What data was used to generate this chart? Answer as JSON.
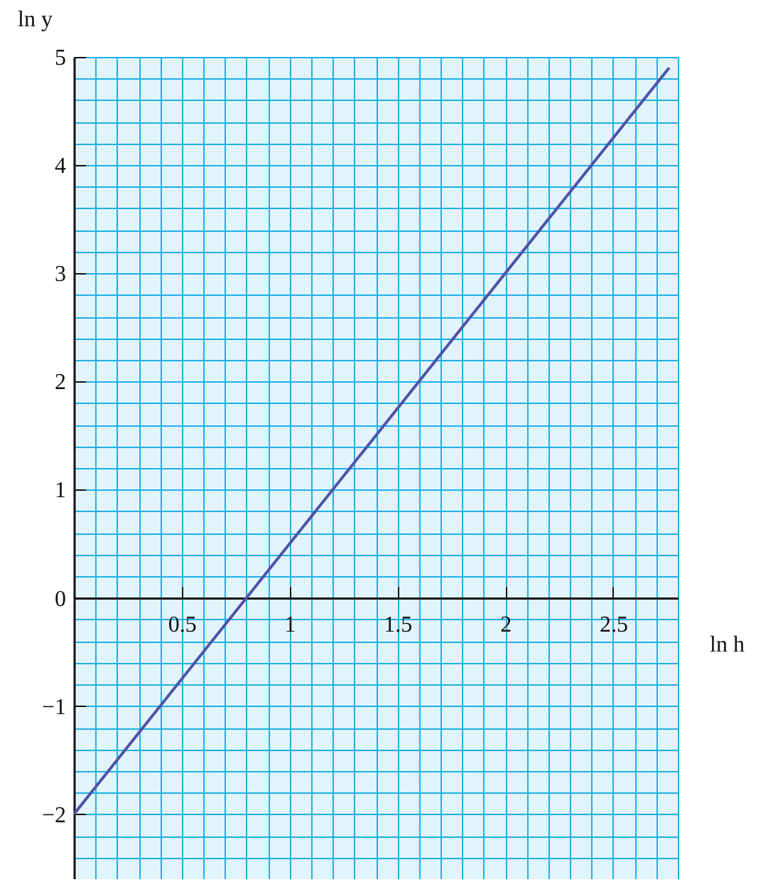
{
  "chart_data": {
    "type": "line",
    "xlabel": "ln h",
    "ylabel": "ln y",
    "xlim": [
      0,
      2.8
    ],
    "ylim": [
      -2.6,
      5
    ],
    "grid": true,
    "xticks": [
      {
        "value": 0,
        "label": null
      },
      {
        "value": 0.1,
        "label": null
      },
      {
        "value": 0.2,
        "label": null
      },
      {
        "value": 0.3,
        "label": null
      },
      {
        "value": 0.4,
        "label": null
      },
      0.5,
      {
        "value": 0.6,
        "label": null
      },
      {
        "value": 0.7,
        "label": null
      },
      {
        "value": 0.8,
        "label": null
      },
      {
        "value": 0.9,
        "label": null
      },
      1,
      {
        "value": 1.1,
        "label": null
      },
      {
        "value": 1.2,
        "label": null
      },
      {
        "value": 1.3,
        "label": null
      },
      {
        "value": 1.4,
        "label": null
      },
      1.5,
      {
        "value": 1.6,
        "label": null
      },
      {
        "value": 1.7,
        "label": null
      },
      {
        "value": 1.8,
        "label": null
      },
      {
        "value": 1.9,
        "label": null
      },
      2,
      {
        "value": 2.1,
        "label": null
      },
      {
        "value": 2.2,
        "label": null
      },
      {
        "value": 2.3,
        "label": null
      },
      {
        "value": 2.4,
        "label": null
      },
      2.5,
      {
        "value": 2.6,
        "label": null
      },
      {
        "value": 2.7,
        "label": null
      },
      {
        "value": 2.8,
        "label": null
      }
    ],
    "yticks": [
      {
        "value": -2.6,
        "label": null
      },
      {
        "value": -2.4,
        "label": null
      },
      {
        "value": -2.2,
        "label": null
      },
      {
        "value": -2,
        "label": "−2"
      },
      {
        "value": -1.8,
        "label": null
      },
      {
        "value": -1.6,
        "label": null
      },
      {
        "value": -1.4,
        "label": null
      },
      {
        "value": -1.2,
        "label": null
      },
      {
        "value": -1,
        "label": "−1"
      },
      {
        "value": -0.8,
        "label": null
      },
      {
        "value": -0.6,
        "label": null
      },
      {
        "value": -0.4,
        "label": null
      },
      {
        "value": -0.2,
        "label": null
      },
      0,
      {
        "value": 0.2,
        "label": null
      },
      {
        "value": 0.4,
        "label": null
      },
      {
        "value": 0.6,
        "label": null
      },
      {
        "value": 0.8,
        "label": null
      },
      1,
      {
        "value": 1.2,
        "label": null
      },
      {
        "value": 1.4,
        "label": null
      },
      {
        "value": 1.6,
        "label": null
      },
      {
        "value": 1.8,
        "label": null
      },
      2,
      {
        "value": 2.2,
        "label": null
      },
      {
        "value": 2.4,
        "label": null
      },
      {
        "value": 2.6,
        "label": null
      },
      {
        "value": 2.8,
        "label": null
      },
      3,
      {
        "value": 3.2,
        "label": null
      },
      {
        "value": 3.4,
        "label": null
      },
      {
        "value": 3.6,
        "label": null
      },
      {
        "value": 3.8,
        "label": null
      },
      4,
      {
        "value": 4.2,
        "label": null
      },
      {
        "value": 4.4,
        "label": null
      },
      {
        "value": 4.6,
        "label": null
      },
      {
        "value": 4.8,
        "label": null
      },
      5
    ],
    "series": [
      {
        "color": "#5052a8",
        "x": [
          0,
          2.76
        ],
        "values": [
          -2,
          4.9
        ]
      }
    ]
  }
}
